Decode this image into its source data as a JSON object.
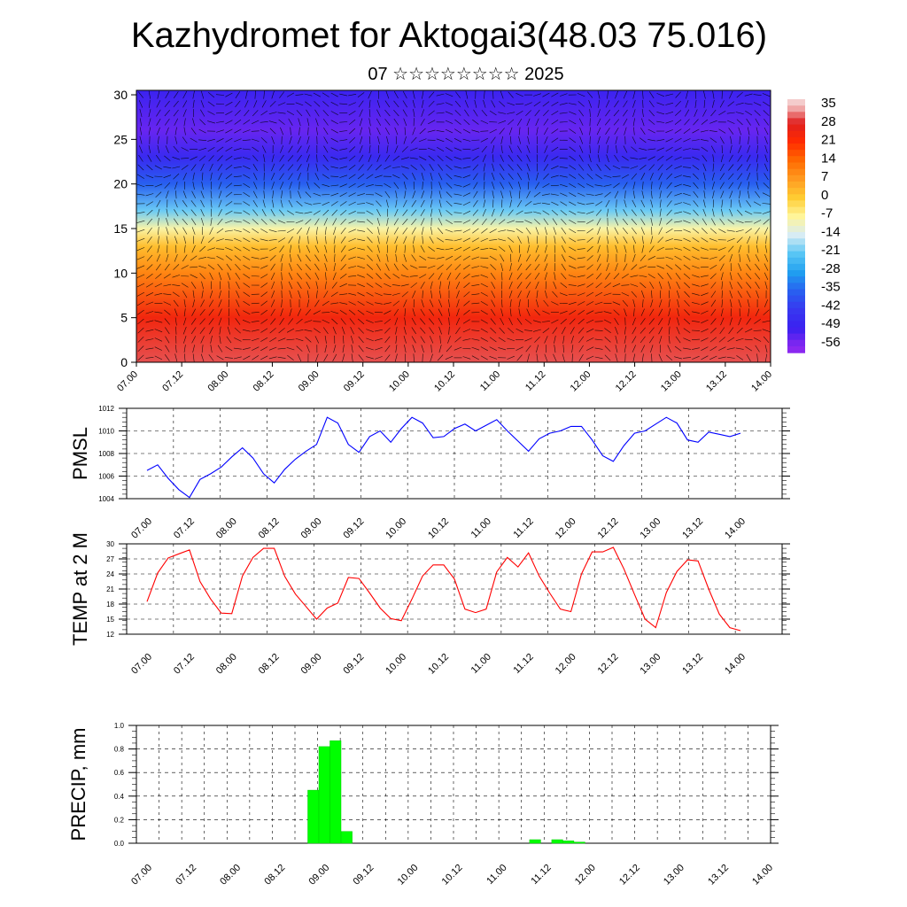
{
  "header": {
    "title": "Kazhydromet for Aktogai3(48.03 75.016)",
    "subtitle": "07 ☆☆☆☆☆☆☆☆ 2025"
  },
  "time_labels": [
    "07.00",
    "07.12",
    "08.00",
    "08.12",
    "09.00",
    "09.12",
    "10.00",
    "10.12",
    "11.00",
    "11.12",
    "12.00",
    "12.12",
    "13.00",
    "13.12",
    "14.00"
  ],
  "colors": {
    "pmsl_line": "#0000ff",
    "temp_line": "#ff0000",
    "precip_bar": "#00ff00"
  },
  "chart_data": [
    {
      "type": "heatmap",
      "title": "",
      "xlabel": "",
      "ylabel": "",
      "x_ticks": [
        "07.00",
        "07.12",
        "08.00",
        "08.12",
        "09.00",
        "09.12",
        "10.00",
        "10.12",
        "11.00",
        "11.12",
        "12.00",
        "12.12",
        "13.00",
        "13.12",
        "14.00"
      ],
      "y_ticks": [
        0,
        5,
        10,
        15,
        20,
        25,
        30
      ],
      "ylim": [
        0,
        30.5
      ],
      "colorbar_labels": [
        35,
        28,
        21,
        14,
        7,
        0,
        -7,
        -14,
        -21,
        -28,
        -35,
        -42,
        -49,
        -56
      ],
      "colorscale": [
        {
          "value": 35,
          "color": "#f4cccc"
        },
        {
          "value": 28,
          "color": "#e02020"
        },
        {
          "value": 21,
          "color": "#ff2a00"
        },
        {
          "value": 14,
          "color": "#ff6a00"
        },
        {
          "value": 7,
          "color": "#ff9a20"
        },
        {
          "value": 0,
          "color": "#ffcc33"
        },
        {
          "value": -7,
          "color": "#fff59a"
        },
        {
          "value": -14,
          "color": "#d8ecf4"
        },
        {
          "value": -21,
          "color": "#59c6f5"
        },
        {
          "value": -28,
          "color": "#20a0f0"
        },
        {
          "value": -35,
          "color": "#2860f0"
        },
        {
          "value": -42,
          "color": "#3838f0"
        },
        {
          "value": -49,
          "color": "#3a20f0"
        },
        {
          "value": -56,
          "color": "#8a28f0"
        }
      ],
      "level_profile": [
        {
          "level": 0,
          "value": 30
        },
        {
          "level": 5,
          "value": 24
        },
        {
          "level": 10,
          "value": 10
        },
        {
          "level": 13,
          "value": 2
        },
        {
          "level": 15,
          "value": -8
        },
        {
          "level": 17,
          "value": -20
        },
        {
          "level": 20,
          "value": -35
        },
        {
          "level": 23,
          "value": -46
        },
        {
          "level": 26,
          "value": -53
        },
        {
          "level": 30.5,
          "value": -48
        }
      ],
      "wind_vectors": true
    },
    {
      "type": "line",
      "ylabel": "PMSL",
      "x_ticks": [
        "07.00",
        "07.12",
        "08.00",
        "08.12",
        "09.00",
        "09.12",
        "10.00",
        "10.12",
        "11.00",
        "11.12",
        "12.00",
        "12.12",
        "13.00",
        "13.12",
        "14.00"
      ],
      "y_ticks": [
        1004,
        1006,
        1008,
        1010,
        1012
      ],
      "ylim": [
        1004,
        1012
      ],
      "series": [
        {
          "x_hours": [
            0,
            3,
            6,
            9,
            12,
            15,
            18,
            21,
            24,
            27,
            30,
            33,
            36,
            39,
            42,
            45,
            48,
            51,
            54,
            57,
            60,
            63,
            66,
            69,
            72,
            75,
            78,
            81,
            84,
            87,
            90,
            93,
            96,
            99,
            102,
            105,
            108,
            111,
            114,
            117,
            120,
            123,
            126,
            129,
            132,
            135,
            138,
            141,
            144,
            147,
            150,
            153,
            156,
            159,
            162,
            165,
            168
          ],
          "values": [
            1006.5,
            1007.0,
            1005.8,
            1004.8,
            1004.1,
            1005.7,
            1006.2,
            1006.8,
            1007.7,
            1008.5,
            1007.6,
            1006.2,
            1005.4,
            1006.6,
            1007.5,
            1008.2,
            1008.8,
            1011.2,
            1010.7,
            1008.8,
            1008.1,
            1009.5,
            1010.0,
            1009.0,
            1010.2,
            1011.2,
            1010.7,
            1009.4,
            1009.5,
            1010.2,
            1010.6,
            1010.0,
            1010.5,
            1011.0,
            1010.0,
            1009.1,
            1008.2,
            1009.3,
            1009.8,
            1010.0,
            1010.4,
            1010.4,
            1009.2,
            1007.8,
            1007.3,
            1008.7,
            1009.8,
            1010.0,
            1010.6,
            1011.2,
            1010.7,
            1009.2,
            1009.0,
            1009.9,
            1009.7,
            1009.5,
            1009.8
          ]
        }
      ]
    },
    {
      "type": "line",
      "ylabel": "TEMP at 2 M",
      "x_ticks": [
        "07.00",
        "07.12",
        "08.00",
        "08.12",
        "09.00",
        "09.12",
        "10.00",
        "10.12",
        "11.00",
        "11.12",
        "12.00",
        "12.12",
        "13.00",
        "13.12",
        "14.00"
      ],
      "y_ticks": [
        12,
        15,
        18,
        21,
        24,
        27,
        30
      ],
      "ylim": [
        12,
        30
      ],
      "series": [
        {
          "x_hours": [
            0,
            3,
            6,
            9,
            12,
            15,
            18,
            21,
            24,
            27,
            30,
            33,
            36,
            39,
            42,
            45,
            48,
            51,
            54,
            57,
            60,
            63,
            66,
            69,
            72,
            75,
            78,
            81,
            84,
            87,
            90,
            93,
            96,
            99,
            102,
            105,
            108,
            111,
            114,
            117,
            120,
            123,
            126,
            129,
            132,
            135,
            138,
            141,
            144,
            147,
            150,
            153,
            156,
            159,
            162,
            165,
            168
          ],
          "values": [
            18.5,
            24.2,
            27.2,
            28.0,
            28.8,
            22.5,
            19.0,
            16.2,
            16.1,
            23.6,
            27.3,
            29.1,
            29.1,
            23.5,
            20.0,
            17.5,
            15.0,
            17.2,
            18.2,
            23.3,
            23.1,
            20.2,
            17.2,
            15.1,
            14.7,
            19.0,
            23.6,
            25.8,
            25.8,
            23.0,
            17.0,
            16.3,
            17.0,
            24.4,
            27.3,
            25.4,
            28.2,
            23.6,
            20.2,
            17.0,
            16.5,
            24.0,
            28.4,
            28.4,
            29.3,
            25.0,
            19.9,
            15.0,
            13.3,
            20.3,
            24.5,
            26.8,
            26.6,
            21.0,
            16.0,
            13.3,
            12.7
          ]
        }
      ]
    },
    {
      "type": "bar",
      "ylabel": "PRECIP, mm",
      "x_ticks": [
        "07.00",
        "07.12",
        "08.00",
        "08.12",
        "09.00",
        "09.12",
        "10.00",
        "10.12",
        "11.00",
        "11.12",
        "12.00",
        "12.12",
        "13.00",
        "13.12",
        "14.00"
      ],
      "y_ticks": [
        0.0,
        0.2,
        0.4,
        0.6,
        0.8,
        1.0
      ],
      "ylim": [
        0,
        1.0
      ],
      "series": [
        {
          "x_hours": [
            45,
            48,
            51,
            54,
            105,
            111,
            114,
            117
          ],
          "values": [
            0.45,
            0.82,
            0.87,
            0.1,
            0.03,
            0.03,
            0.02,
            0.01
          ]
        }
      ]
    }
  ]
}
